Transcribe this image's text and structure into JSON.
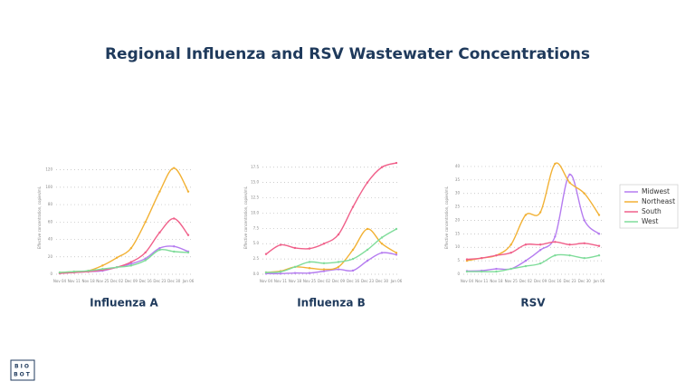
{
  "title": "Regional  Influenza and RSV Wastewater Concentrations",
  "logo": [
    "BIO",
    "BOT"
  ],
  "chart_data": [
    {
      "type": "line",
      "title": "Influenza A",
      "y_label": "Effective concentration, copies/mL",
      "categories": [
        "Nov 04",
        "Nov 11",
        "Nov 18",
        "Nov 25",
        "Dec 02",
        "Dec 09",
        "Dec 16",
        "Dec 23",
        "Dec 30",
        "Jan 06"
      ],
      "ylim": [
        0,
        130
      ],
      "yticks": [
        0,
        20,
        40,
        60,
        80,
        100,
        120
      ],
      "grid": true,
      "legend": "right",
      "series": [
        {
          "name": "Midwest",
          "color": "#b57cf0",
          "values": [
            1,
            2,
            3,
            4,
            8,
            12,
            18,
            30,
            32,
            26
          ]
        },
        {
          "name": "Northeast",
          "color": "#f2b134",
          "values": [
            2,
            3,
            4,
            10,
            19,
            30,
            60,
            95,
            122,
            95
          ]
        },
        {
          "name": "South",
          "color": "#f0608a",
          "values": [
            1,
            2,
            3,
            5,
            8,
            14,
            25,
            48,
            64,
            45
          ]
        },
        {
          "name": "West",
          "color": "#7fdc9a",
          "values": [
            2,
            3,
            4,
            6,
            8,
            10,
            16,
            28,
            26,
            25
          ]
        }
      ]
    },
    {
      "type": "line",
      "title": "Influenza B",
      "y_label": "Effective concentration, copies/mL",
      "categories": [
        "Nov 04",
        "Nov 11",
        "Nov 18",
        "Nov 25",
        "Dec 02",
        "Dec 09",
        "Dec 16",
        "Dec 23",
        "Dec 30",
        "Jan 06"
      ],
      "ylim": [
        0,
        18.5
      ],
      "yticks": [
        {
          "value": 0,
          "label": "0.0"
        },
        2.5,
        {
          "value": 5,
          "label": "5.0"
        },
        7.5,
        {
          "value": 10,
          "label": "10.0"
        },
        12.5,
        {
          "value": 15,
          "label": "15.0"
        },
        17.5
      ],
      "grid": true,
      "series": [
        {
          "name": "Midwest",
          "color": "#b57cf0",
          "values": [
            0.1,
            0.1,
            0.2,
            0.2,
            0.5,
            0.8,
            0.6,
            2.2,
            3.5,
            3.2
          ]
        },
        {
          "name": "Northeast",
          "color": "#f2b134",
          "values": [
            0.3,
            0.5,
            1.2,
            1.0,
            0.8,
            1.2,
            4.0,
            7.4,
            5.0,
            3.5
          ]
        },
        {
          "name": "South",
          "color": "#f0608a",
          "values": [
            3.3,
            4.8,
            4.3,
            4.2,
            5.0,
            6.5,
            11.0,
            15.0,
            17.5,
            18.2
          ]
        },
        {
          "name": "West",
          "color": "#7fdc9a",
          "values": [
            0.3,
            0.4,
            1.2,
            2.0,
            1.8,
            2.0,
            2.5,
            4.0,
            6.0,
            7.4
          ]
        }
      ]
    },
    {
      "type": "line",
      "title": "RSV",
      "y_label": "Effective concentration, copies/mL",
      "categories": [
        "Nov 04",
        "Nov 11",
        "Nov 18",
        "Nov 25",
        "Dec 02",
        "Dec 09",
        "Dec 16",
        "Dec 23",
        "Dec 30",
        "Jan 06"
      ],
      "ylim": [
        0,
        42
      ],
      "yticks": [
        0,
        5,
        10,
        15,
        20,
        25,
        30,
        35,
        40
      ],
      "grid": true,
      "series": [
        {
          "name": "Midwest",
          "color": "#b57cf0",
          "values": [
            1.2,
            1.3,
            2,
            2,
            5,
            9,
            14,
            37,
            20,
            15
          ]
        },
        {
          "name": "Northeast",
          "color": "#f2b134",
          "values": [
            5,
            6,
            7,
            11,
            22,
            23,
            41,
            34,
            30,
            22
          ]
        },
        {
          "name": "South",
          "color": "#f0608a",
          "values": [
            5.5,
            6,
            7,
            8,
            11,
            11,
            12,
            11,
            11.5,
            10.5
          ]
        },
        {
          "name": "West",
          "color": "#7fdc9a",
          "values": [
            1,
            1,
            1,
            2,
            3,
            4,
            7,
            7,
            6,
            7
          ]
        }
      ]
    }
  ]
}
